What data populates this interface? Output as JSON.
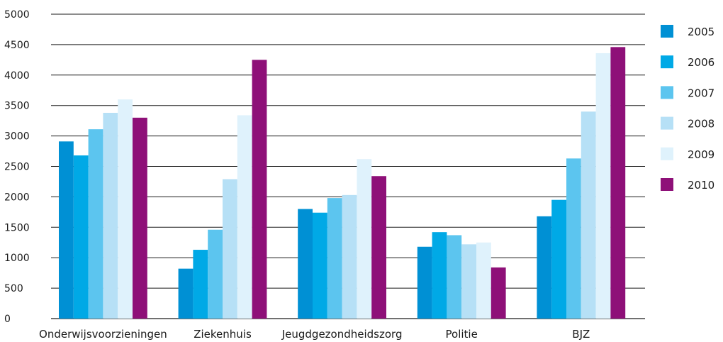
{
  "chart_data": {
    "type": "bar",
    "categories": [
      "Onderwijsvoorzieningen",
      "Ziekenhuis",
      "Jeugdgezondheidszorg",
      "Politie",
      "BJZ"
    ],
    "series": [
      {
        "name": "2005",
        "color": "#0090d4",
        "values": [
          2910,
          820,
          1800,
          1180,
          1680
        ]
      },
      {
        "name": "2006",
        "color": "#00a9e6",
        "values": [
          2680,
          1130,
          1740,
          1420,
          1950
        ]
      },
      {
        "name": "2007",
        "color": "#5cc5ef",
        "values": [
          3110,
          1460,
          1980,
          1370,
          2630
        ]
      },
      {
        "name": "2008",
        "color": "#b6e0f6",
        "values": [
          3380,
          2290,
          2030,
          1220,
          3400
        ]
      },
      {
        "name": "2009",
        "color": "#dff2fc",
        "values": [
          3600,
          3340,
          2620,
          1250,
          4360
        ]
      },
      {
        "name": "2010",
        "color": "#8e1078",
        "values": [
          3300,
          4250,
          2340,
          840,
          4460
        ]
      }
    ],
    "ylim": [
      0,
      5000
    ],
    "yticks": [
      0,
      500,
      1000,
      1500,
      2000,
      2500,
      3000,
      3500,
      4000,
      4500,
      5000
    ],
    "ytick_labels": [
      "0",
      "500",
      "1000",
      "1500",
      "2000",
      "2500",
      "3000",
      "3500",
      "4000",
      "4500",
      "5000"
    ],
    "grid": true,
    "legend_position": "right",
    "title": "",
    "xlabel": "",
    "ylabel": ""
  }
}
